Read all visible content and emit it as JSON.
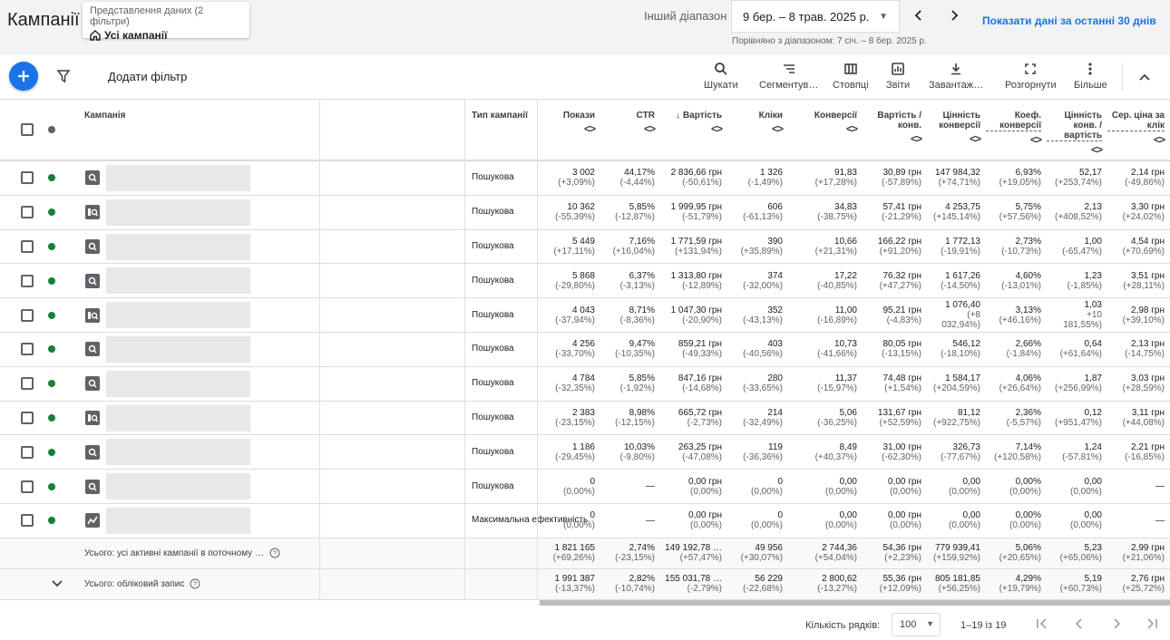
{
  "header": {
    "title": "Кампанії",
    "view_caption": "Представлення даних (2 фільтри)",
    "view_value": "Усі кампанії",
    "range_label": "Інший діапазон",
    "date_range": "9 бер. – 8 трав. 2025 р.",
    "compare_text": "Порівняно з діапазоном: 7 січ. – 8 бер. 2025 р.",
    "last30_link": "Показати дані за останні 30 днів"
  },
  "toolbar": {
    "add_filter": "Додати фільтр",
    "tools": [
      {
        "label": "Шукати",
        "icon": "search-icon"
      },
      {
        "label": "Сегментув…",
        "icon": "segment-icon"
      },
      {
        "label": "Стовпці",
        "icon": "columns-icon"
      },
      {
        "label": "Звіти",
        "icon": "reports-icon"
      },
      {
        "label": "Завантаж…",
        "icon": "download-icon"
      },
      {
        "label": "Розгорнути",
        "icon": "expand-icon"
      },
      {
        "label": "Більше",
        "icon": "more-vert-icon"
      }
    ]
  },
  "table": {
    "headers": {
      "campaign": "Кампанія",
      "type": "Тип кампанії",
      "sort_glyph": "<>",
      "sort_arrow": "↓",
      "metrics": [
        "Покази",
        "CTR",
        "Вартість",
        "Кліки",
        "Конверсії",
        "Вартість / конв.",
        "Цінність конверсії",
        "Коеф. конверсії",
        "Цінність конв. / вартість",
        "Сер. ціна за клік"
      ]
    },
    "status_color": "#188038",
    "rows": [
      {
        "type": "Пошукова",
        "icon": "search-campaign-icon",
        "metrics": [
          [
            "3 002",
            "(+3,09%)"
          ],
          [
            "44,17%",
            "(-4,44%)"
          ],
          [
            "2 836,66 грн",
            "(-50,61%)"
          ],
          [
            "1 326",
            "(-1,49%)"
          ],
          [
            "91,83",
            "(+17,28%)"
          ],
          [
            "30,89 грн",
            "(-57,89%)"
          ],
          [
            "147 984,32",
            "(+74,71%)"
          ],
          [
            "6,93%",
            "(+19,05%)"
          ],
          [
            "52,17",
            "(+253,74%)"
          ],
          [
            "2,14 грн",
            "(-49,86%)"
          ]
        ]
      },
      {
        "type": "Пошукова",
        "icon": "search-ads-icon",
        "metrics": [
          [
            "10 362",
            "(-55,39%)"
          ],
          [
            "5,85%",
            "(-12,87%)"
          ],
          [
            "1 999,95 грн",
            "(-51,79%)"
          ],
          [
            "606",
            "(-61,13%)"
          ],
          [
            "34,83",
            "(-38,75%)"
          ],
          [
            "57,41 грн",
            "(-21,29%)"
          ],
          [
            "4 253,75",
            "(+145,14%)"
          ],
          [
            "5,75%",
            "(+57,56%)"
          ],
          [
            "2,13",
            "(+408,52%)"
          ],
          [
            "3,30 грн",
            "(+24,02%)"
          ]
        ]
      },
      {
        "type": "Пошукова",
        "icon": "search-campaign-icon",
        "metrics": [
          [
            "5 449",
            "(+17,11%)"
          ],
          [
            "7,16%",
            "(+16,04%)"
          ],
          [
            "1 771,59 грн",
            "(+131,94%)"
          ],
          [
            "390",
            "(+35,89%)"
          ],
          [
            "10,66",
            "(+21,31%)"
          ],
          [
            "166,22 грн",
            "(+91,20%)"
          ],
          [
            "1 772,13",
            "(-19,91%)"
          ],
          [
            "2,73%",
            "(-10,73%)"
          ],
          [
            "1,00",
            "(-65,47%)"
          ],
          [
            "4,54 грн",
            "(+70,69%)"
          ]
        ]
      },
      {
        "type": "Пошукова",
        "icon": "search-campaign-icon",
        "metrics": [
          [
            "5 868",
            "(-29,80%)"
          ],
          [
            "6,37%",
            "(-3,13%)"
          ],
          [
            "1 313,80 грн",
            "(-12,89%)"
          ],
          [
            "374",
            "(-32,00%)"
          ],
          [
            "17,22",
            "(-40,85%)"
          ],
          [
            "76,32 грн",
            "(+47,27%)"
          ],
          [
            "1 617,26",
            "(-14,50%)"
          ],
          [
            "4,60%",
            "(-13,01%)"
          ],
          [
            "1,23",
            "(-1,85%)"
          ],
          [
            "3,51 грн",
            "(+28,11%)"
          ]
        ]
      },
      {
        "type": "Пошукова",
        "icon": "search-ads-icon",
        "metrics": [
          [
            "4 043",
            "(-37,94%)"
          ],
          [
            "8,71%",
            "(-8,36%)"
          ],
          [
            "1 047,30 грн",
            "(-20,90%)"
          ],
          [
            "352",
            "(-43,13%)"
          ],
          [
            "11,00",
            "(-16,89%)"
          ],
          [
            "95,21 грн",
            "(-4,83%)"
          ],
          [
            "1 076,40",
            "(+8 032,94%)"
          ],
          [
            "3,13%",
            "(+46,16%)"
          ],
          [
            "1,03",
            "+10 181,55%)"
          ],
          [
            "2,98 грн",
            "(+39,10%)"
          ]
        ]
      },
      {
        "type": "Пошукова",
        "icon": "search-campaign-icon",
        "metrics": [
          [
            "4 256",
            "(-33,70%)"
          ],
          [
            "9,47%",
            "(-10,35%)"
          ],
          [
            "859,21 грн",
            "(-49,33%)"
          ],
          [
            "403",
            "(-40,56%)"
          ],
          [
            "10,73",
            "(-41,66%)"
          ],
          [
            "80,05 грн",
            "(-13,15%)"
          ],
          [
            "546,12",
            "(-18,10%)"
          ],
          [
            "2,66%",
            "(-1,84%)"
          ],
          [
            "0,64",
            "(+61,64%)"
          ],
          [
            "2,13 грн",
            "(-14,75%)"
          ]
        ]
      },
      {
        "type": "Пошукова",
        "icon": "search-campaign-icon",
        "metrics": [
          [
            "4 784",
            "(-32,35%)"
          ],
          [
            "5,85%",
            "(-1,92%)"
          ],
          [
            "847,16 грн",
            "(-14,68%)"
          ],
          [
            "280",
            "(-33,65%)"
          ],
          [
            "11,37",
            "(-15,97%)"
          ],
          [
            "74,48 грн",
            "(+1,54%)"
          ],
          [
            "1 584,17",
            "(+204,59%)"
          ],
          [
            "4,06%",
            "(+26,64%)"
          ],
          [
            "1,87",
            "(+256,99%)"
          ],
          [
            "3,03 грн",
            "(+28,59%)"
          ]
        ]
      },
      {
        "type": "Пошукова",
        "icon": "search-ads-icon",
        "metrics": [
          [
            "2 383",
            "(-23,15%)"
          ],
          [
            "8,98%",
            "(-12,15%)"
          ],
          [
            "665,72 грн",
            "(-2,73%)"
          ],
          [
            "214",
            "(-32,49%)"
          ],
          [
            "5,06",
            "(-36,25%)"
          ],
          [
            "131,67 грн",
            "(+52,59%)"
          ],
          [
            "81,12",
            "(+922,75%)"
          ],
          [
            "2,36%",
            "(-5,57%)"
          ],
          [
            "0,12",
            "(+951,47%)"
          ],
          [
            "3,11 грн",
            "(+44,08%)"
          ]
        ]
      },
      {
        "type": "Пошукова",
        "icon": "search-campaign-icon",
        "metrics": [
          [
            "1 186",
            "(-29,45%)"
          ],
          [
            "10,03%",
            "(-9,80%)"
          ],
          [
            "263,25 грн",
            "(-47,08%)"
          ],
          [
            "119",
            "(-36,36%)"
          ],
          [
            "8,49",
            "(+40,37%)"
          ],
          [
            "31,00 грн",
            "(-62,30%)"
          ],
          [
            "326,73",
            "(-77,67%)"
          ],
          [
            "7,14%",
            "(+120,58%)"
          ],
          [
            "1,24",
            "(-57,81%)"
          ],
          [
            "2,21 грн",
            "(-16,85%)"
          ]
        ]
      },
      {
        "type": "Пошукова",
        "icon": "search-campaign-icon",
        "metrics": [
          [
            "0",
            "(0,00%)"
          ],
          [
            "—",
            ""
          ],
          [
            "0,00 грн",
            "(0,00%)"
          ],
          [
            "0",
            "(0,00%)"
          ],
          [
            "0,00",
            "(0,00%)"
          ],
          [
            "0,00 грн",
            "(0,00%)"
          ],
          [
            "0,00",
            "(0,00%)"
          ],
          [
            "0,00%",
            "(0,00%)"
          ],
          [
            "0,00",
            "(0,00%)"
          ],
          [
            "—",
            ""
          ]
        ]
      },
      {
        "type": "Максимальна ефективність",
        "icon": "performance-max-icon",
        "metrics": [
          [
            "0",
            "(0,00%)"
          ],
          [
            "—",
            ""
          ],
          [
            "0,00 грн",
            "(0,00%)"
          ],
          [
            "0",
            "(0,00%)"
          ],
          [
            "0,00",
            "(0,00%)"
          ],
          [
            "0,00 грн",
            "(0,00%)"
          ],
          [
            "0,00",
            "(0,00%)"
          ],
          [
            "0,00%",
            "(0,00%)"
          ],
          [
            "0,00",
            "(0,00%)"
          ],
          [
            "—",
            ""
          ]
        ]
      }
    ],
    "totals": [
      {
        "label": "Усього: усі активні кампанії в поточному …",
        "metrics": [
          [
            "1 821 165",
            "(+69,26%)"
          ],
          [
            "2,74%",
            "(-23,15%)"
          ],
          [
            "149 192,78 …",
            "(+57,47%)"
          ],
          [
            "49 956",
            "(+30,07%)"
          ],
          [
            "2 744,36",
            "(+54,04%)"
          ],
          [
            "54,36 грн",
            "(+2,23%)"
          ],
          [
            "779 939,41",
            "(+159,92%)"
          ],
          [
            "5,06%",
            "(+20,65%)"
          ],
          [
            "5,23",
            "(+65,06%)"
          ],
          [
            "2,99 грн",
            "(+21,06%)"
          ]
        ]
      },
      {
        "label": "Усього: обліковий запис",
        "metrics": [
          [
            "1 991 387",
            "(-13,37%)"
          ],
          [
            "2,82%",
            "(-10,74%)"
          ],
          [
            "155 031,78 …",
            "(-2,79%)"
          ],
          [
            "56 229",
            "(-22,68%)"
          ],
          [
            "2 800,62",
            "(-13,27%)"
          ],
          [
            "55,36 грн",
            "(+12,09%)"
          ],
          [
            "805 181,85",
            "(+56,25%)"
          ],
          [
            "4,29%",
            "(+19,79%)"
          ],
          [
            "5,19",
            "(+60,73%)"
          ],
          [
            "2,76 грн",
            "(+25,72%)"
          ]
        ]
      }
    ]
  },
  "footer": {
    "rows_label": "Кількість рядків:",
    "rows_value": "100",
    "range_text": "1–19 із 19"
  }
}
